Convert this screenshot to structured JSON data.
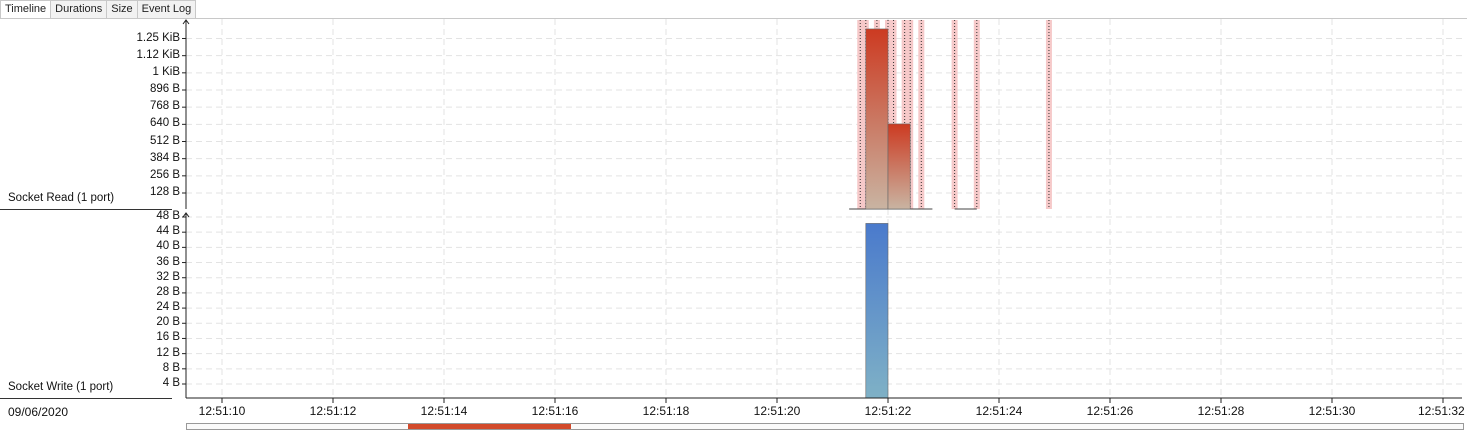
{
  "tabs": [
    {
      "label": "Timeline",
      "active": true
    },
    {
      "label": "Durations",
      "active": false
    },
    {
      "label": "Size",
      "active": false
    },
    {
      "label": "Event Log",
      "active": false
    }
  ],
  "date": "09/06/2020",
  "colors": {
    "read_top": "#cc3a21",
    "read_bottom": "#c9b4a2",
    "write_top": "#4a7acc",
    "write_bottom": "#7fb1c6",
    "event_band": "#f6c9c9",
    "scrollbar_thumb": "#d24a2b"
  },
  "chart_data": [
    {
      "type": "bar",
      "lane_label": "Socket Read (1 port)",
      "y_ticks": [
        "1.25 KiB",
        "1.12 KiB",
        "1 KiB",
        "896 B",
        "768 B",
        "640 B",
        "512 B",
        "384 B",
        "256 B",
        "128 B"
      ],
      "ylim_bytes": [
        0,
        1312
      ],
      "grid": true,
      "bars": [
        {
          "start": "12:51:21.6",
          "end": "12:51:22.0",
          "value_bytes": 1270
        },
        {
          "start": "12:51:22.0",
          "end": "12:51:22.4",
          "value_bytes": 600
        }
      ],
      "event_markers": [
        "12:51:21.5",
        "12:51:21.6",
        "12:51:21.8",
        "12:51:22.0",
        "12:51:22.1",
        "12:51:22.3",
        "12:51:22.4",
        "12:51:22.6",
        "12:51:23.2",
        "12:51:23.6",
        "12:51:24.9"
      ]
    },
    {
      "type": "bar",
      "lane_label": "Socket Write (1 port)",
      "y_ticks": [
        "48 B",
        "44 B",
        "40 B",
        "36 B",
        "32 B",
        "28 B",
        "24 B",
        "20 B",
        "16 B",
        "12 B",
        "8 B",
        "4 B"
      ],
      "ylim_bytes": [
        0,
        49
      ],
      "grid": true,
      "bars": [
        {
          "start": "12:51:21.6",
          "end": "12:51:22.0",
          "value_bytes": 47
        }
      ]
    }
  ],
  "x_axis": {
    "tick_labels": [
      "12:51:10",
      "12:51:12",
      "12:51:14",
      "12:51:16",
      "12:51:18",
      "12:51:20",
      "12:51:22",
      "12:51:24",
      "12:51:26",
      "12:51:28",
      "12:51:30",
      "12:51:32"
    ]
  }
}
